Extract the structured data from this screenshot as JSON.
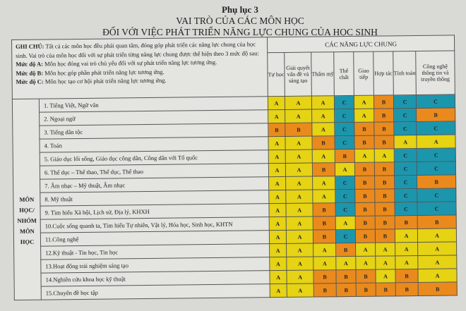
{
  "title": "Phụ lục 3",
  "subtitle_line1": "VAI TRÒ CỦA CÁC MÔN HỌC",
  "subtitle_line2": "ĐỐI VỚI VIỆC PHÁT TRIỂN NĂNG LỰC CHUNG CỦA HỌC SINH",
  "note": {
    "label": "GHI CHÚ:",
    "text": " Tất cả các môn học đều phải quan tâm, đóng góp phát triển các năng lực chung của học sinh. Vai trò của môn học đối với sự phát triển từng năng lực chung được thể hiện theo 3 mức độ sau:",
    "levels": [
      {
        "label": "Mức độ A:",
        "text": " Môn học đóng vai trò chủ yếu đối với sự phát triển năng lực tương ứng."
      },
      {
        "label": "Mức độ B:",
        "text": " Môn học góp phần phát triển năng lực tương ứng."
      },
      {
        "label": "Mức độ C:",
        "text": " Môn học tạo cơ hội phát triển năng lực tương ứng."
      }
    ]
  },
  "group_header": "CÁC NĂNG LỰC CHUNG",
  "columns": [
    "Tự học",
    "Giải quyết vấn đề và sáng tạo",
    "Thẩm mỹ",
    "Thể chất",
    "Giao tiếp",
    "Hợp tác",
    "Tính toán",
    "Công nghệ thông tin và truyền thông"
  ],
  "row_group_label": "MÔN HỌC/ NHÓM MÔN HỌC",
  "level_colors": {
    "A": "#e6d313",
    "B": "#ea8a1d",
    "C": "#1c96ad"
  },
  "rows": [
    {
      "subject": "1. Tiếng Việt, Ngữ văn",
      "levels": [
        "A",
        "A",
        "A",
        "C",
        "A",
        "B",
        "C",
        "C"
      ]
    },
    {
      "subject": "2. Ngoại ngữ",
      "levels": [
        "A",
        "A",
        "A",
        "C",
        "A",
        "B",
        "C",
        "B"
      ]
    },
    {
      "subject": "3. Tiếng dân tộc",
      "levels": [
        "B",
        "B",
        "A",
        "C",
        "B",
        "B",
        "C",
        "C"
      ]
    },
    {
      "subject": "4. Toán",
      "levels": [
        "A",
        "A",
        "B",
        "C",
        "B",
        "B",
        "A",
        "A"
      ]
    },
    {
      "subject": "5. Giáo dục lối sống, Giáo dục công dân, Công dân với Tổ quốc",
      "levels": [
        "A",
        "A",
        "A",
        "B",
        "A",
        "A",
        "C",
        "C"
      ]
    },
    {
      "subject": "6. Thể dục – Thể thao, Thể dục, Thể thao",
      "levels": [
        "A",
        "A",
        "B",
        "A",
        "B",
        "B",
        "C",
        "C"
      ]
    },
    {
      "subject": "7. Âm nhạc – Mỹ thuật, Âm nhạc",
      "levels": [
        "A",
        "A",
        "A",
        "C",
        "B",
        "B",
        "C",
        "B"
      ]
    },
    {
      "subject": "8. Mỹ thuật",
      "levels": [
        "A",
        "A",
        "A",
        "C",
        "B",
        "B",
        "C",
        "C"
      ]
    },
    {
      "subject": "9. Tìm hiểu Xã hội, Lịch sử, Địa lý, KHXH",
      "levels": [
        "A",
        "A",
        "B",
        "C",
        "B",
        "B",
        "C",
        "C"
      ]
    },
    {
      "subject": "10.Cuộc sống quanh ta, Tìm hiểu Tự nhiên, Vật lý, Hóa học, Sinh học, KHTN",
      "levels": [
        "A",
        "A",
        "B",
        "A",
        "B",
        "B",
        "B",
        "B"
      ]
    },
    {
      "subject": "11.Công nghệ",
      "levels": [
        "A",
        "A",
        "B",
        "C",
        "B",
        "B",
        "A",
        "A"
      ]
    },
    {
      "subject": "12.Kỹ thuật - Tin học, Tin học",
      "levels": [
        "A",
        "A",
        "A",
        "B",
        "A",
        "A",
        "A",
        "A"
      ]
    },
    {
      "subject": "13.Hoạt động trải nghiệm sáng tạo",
      "levels": [
        "A",
        "A",
        "A",
        "A",
        "A",
        "A",
        "A",
        "A"
      ]
    },
    {
      "subject": "14.Nghiên cứu khoa học kỹ thuật",
      "levels": [
        "A",
        "A",
        "B",
        "B",
        "B",
        "A",
        "B",
        "A"
      ]
    },
    {
      "subject": "15.Chuyên đề học tập",
      "levels": [
        "A",
        "A",
        "B",
        "B",
        "B",
        "B",
        "B",
        "B"
      ]
    }
  ]
}
